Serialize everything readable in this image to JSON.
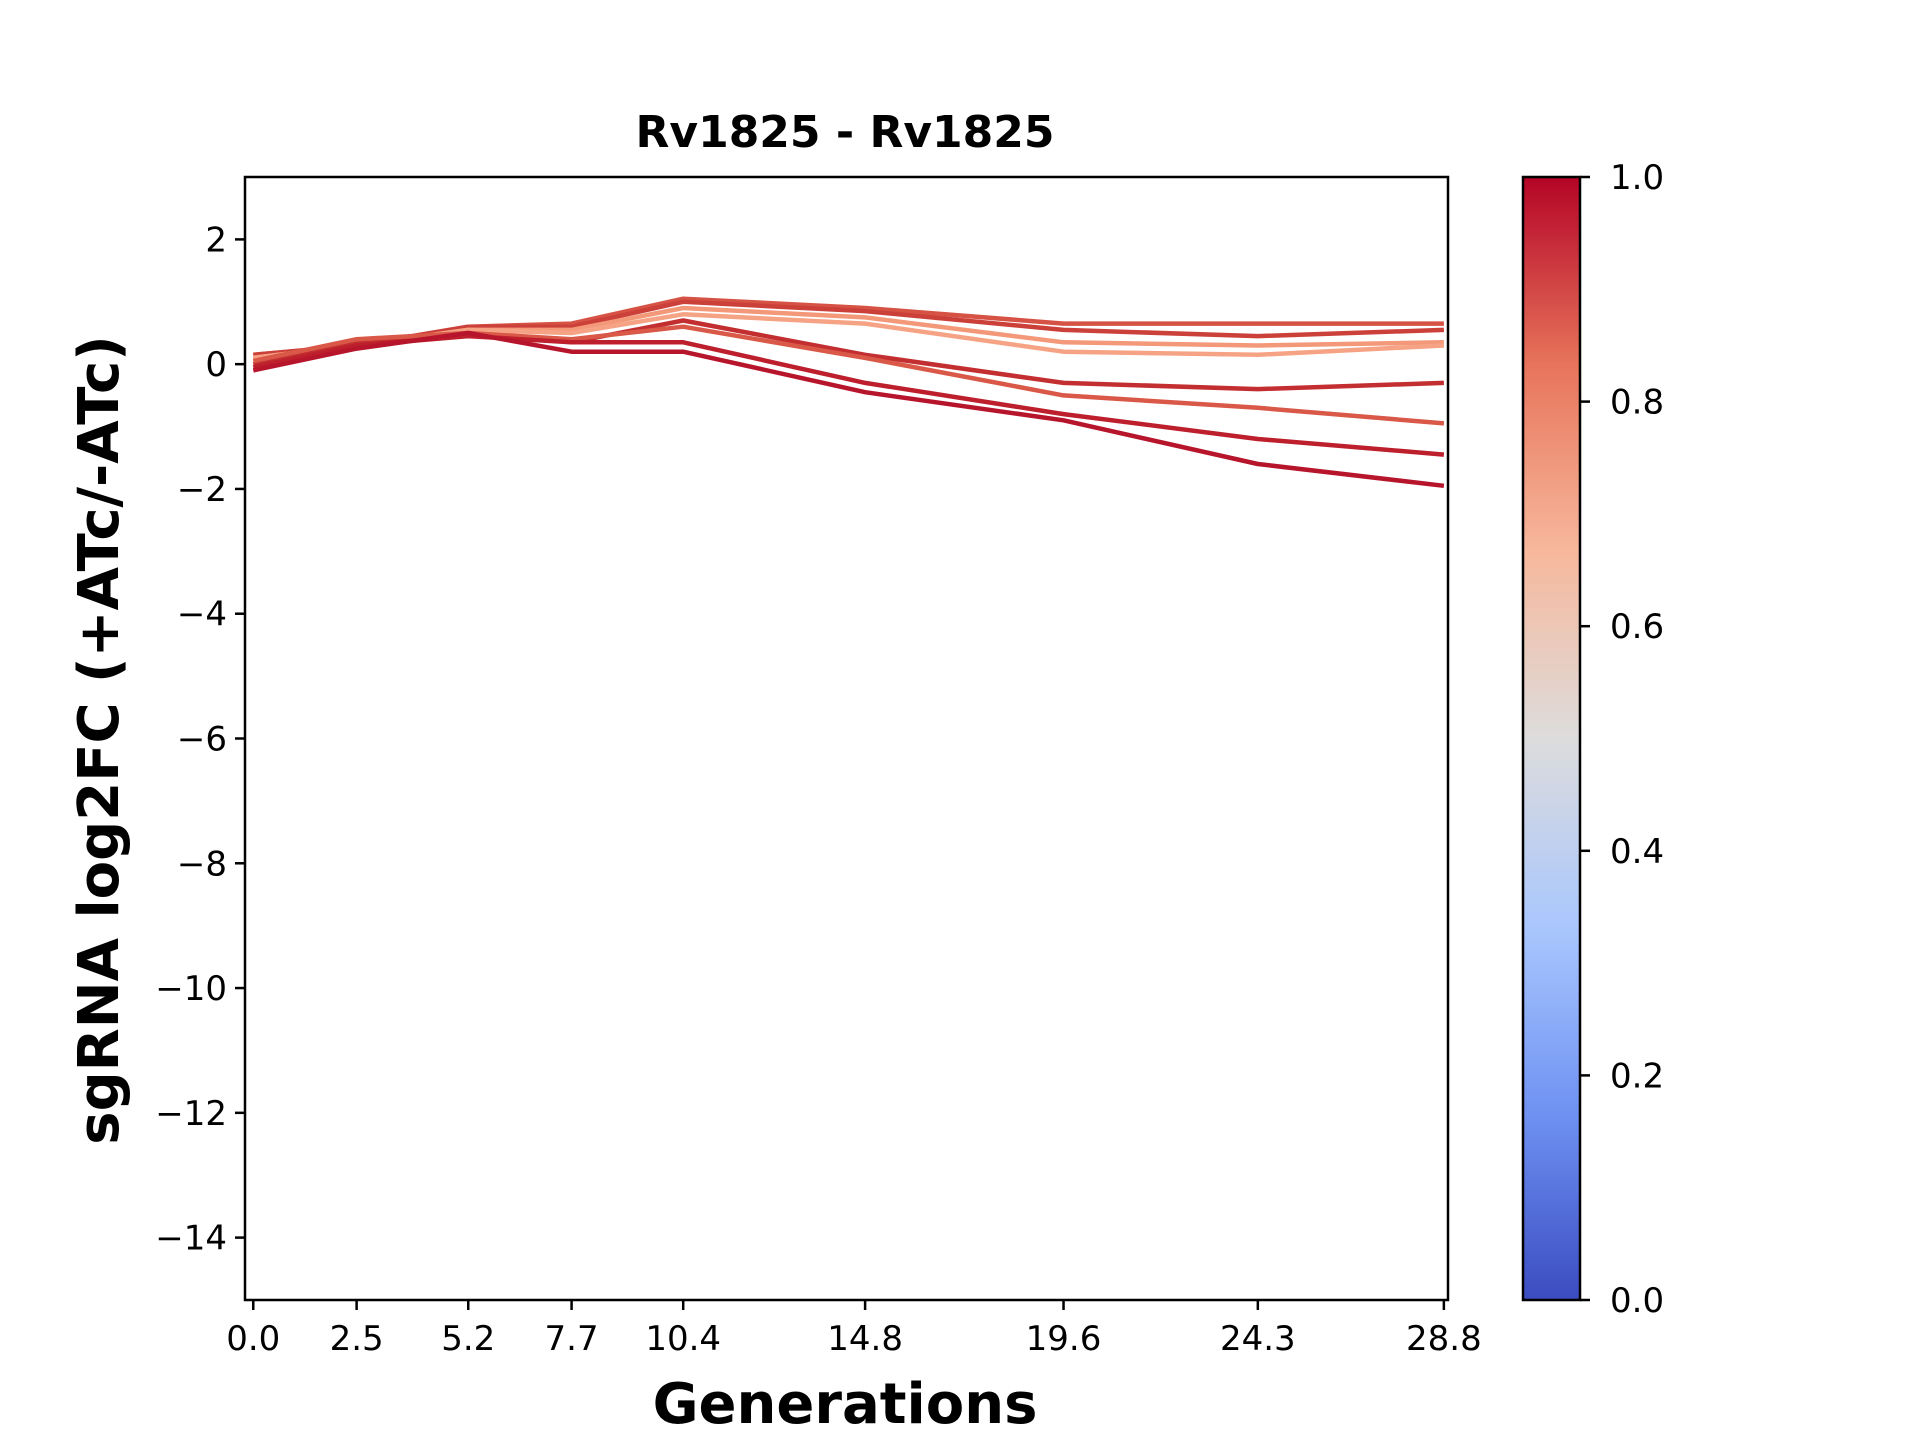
{
  "chart_data": {
    "type": "line",
    "title": "Rv1825 - Rv1825",
    "xlabel": "Generations",
    "ylabel": "sgRNA log2FC (+ATc/-ATc)",
    "x": [
      0.0,
      2.5,
      5.2,
      7.7,
      10.4,
      14.8,
      19.6,
      24.3,
      28.8
    ],
    "x_tick_labels": [
      "0.0",
      "2.5",
      "5.2",
      "7.7",
      "10.4",
      "14.8",
      "19.6",
      "24.3",
      "28.8"
    ],
    "xlim": [
      -0.2,
      28.9
    ],
    "ylim": [
      -15,
      3
    ],
    "y_ticks": [
      2,
      0,
      -2,
      -4,
      -6,
      -8,
      -10,
      -12,
      -14
    ],
    "y_tick_labels": [
      "2",
      "0",
      "−2",
      "−4",
      "−6",
      "−8",
      "−10",
      "−12",
      "−14"
    ],
    "grid": false,
    "colorbar": {
      "colormap": "coolwarm",
      "range": [
        0.0,
        1.0
      ],
      "ticks": [
        1.0,
        0.8,
        0.6,
        0.4,
        0.2,
        0.0
      ],
      "tick_labels": [
        "1.0",
        "0.8",
        "0.6",
        "0.4",
        "0.2",
        "0.0"
      ],
      "stops": [
        "#3b4cc0",
        "#6f92f3",
        "#aac7fd",
        "#dddcdc",
        "#f7b89c",
        "#e7745b",
        "#b40426"
      ]
    },
    "series": [
      {
        "color_value": 0.9,
        "color": "#d65244",
        "values": [
          0.15,
          0.3,
          0.6,
          0.65,
          1.05,
          0.9,
          0.65,
          0.65,
          0.65
        ]
      },
      {
        "color_value": 0.93,
        "color": "#cc403a",
        "values": [
          0.15,
          0.3,
          0.6,
          0.6,
          1.0,
          0.85,
          0.55,
          0.45,
          0.55
        ]
      },
      {
        "color_value": 0.72,
        "color": "#f4987a",
        "values": [
          0.1,
          0.3,
          0.55,
          0.55,
          0.9,
          0.75,
          0.35,
          0.3,
          0.35
        ]
      },
      {
        "color_value": 0.7,
        "color": "#f6a385",
        "values": [
          0.1,
          0.3,
          0.55,
          0.5,
          0.8,
          0.65,
          0.2,
          0.15,
          0.3
        ]
      },
      {
        "color_value": 0.96,
        "color": "#c32e31",
        "values": [
          0.0,
          0.35,
          0.5,
          0.35,
          0.7,
          0.15,
          -0.3,
          -0.4,
          -0.3
        ]
      },
      {
        "color_value": 0.88,
        "color": "#d95847",
        "values": [
          0.05,
          0.4,
          0.5,
          0.4,
          0.6,
          0.1,
          -0.5,
          -0.7,
          -0.95
        ]
      },
      {
        "color_value": 0.98,
        "color": "#bd1f2d",
        "values": [
          -0.05,
          0.3,
          0.45,
          0.35,
          0.35,
          -0.3,
          -0.8,
          -1.2,
          -1.45
        ]
      },
      {
        "color_value": 1.0,
        "color": "#b7152b",
        "values": [
          -0.1,
          0.25,
          0.5,
          0.2,
          0.2,
          -0.45,
          -0.9,
          -1.6,
          -1.95
        ]
      }
    ]
  }
}
